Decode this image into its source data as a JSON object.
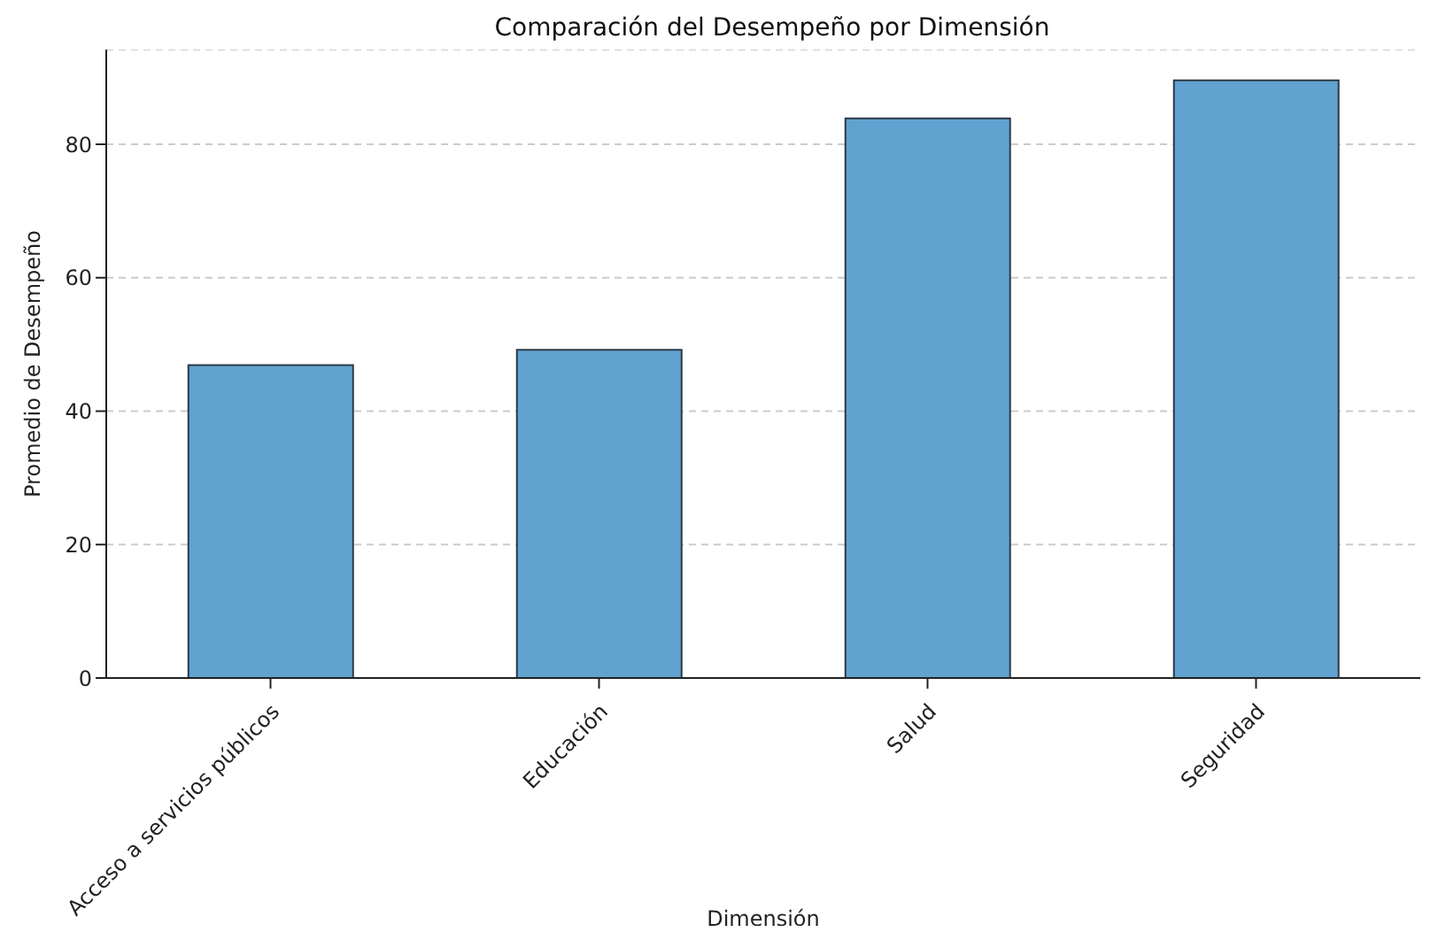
{
  "chart_data": {
    "type": "bar",
    "title": "Comparación del Desempeño por Dimensión",
    "xlabel": "Dimensión",
    "ylabel": "Promedio de Desempeño",
    "categories": [
      "Acceso a servicios públicos",
      "Educación",
      "Salud",
      "Seguridad"
    ],
    "values": [
      46.9,
      49.2,
      83.9,
      89.6
    ],
    "color": "#62a2d0",
    "ylim": [
      0,
      94.2
    ],
    "yticks": [
      0,
      20,
      40,
      60,
      80
    ],
    "grid": "y"
  }
}
